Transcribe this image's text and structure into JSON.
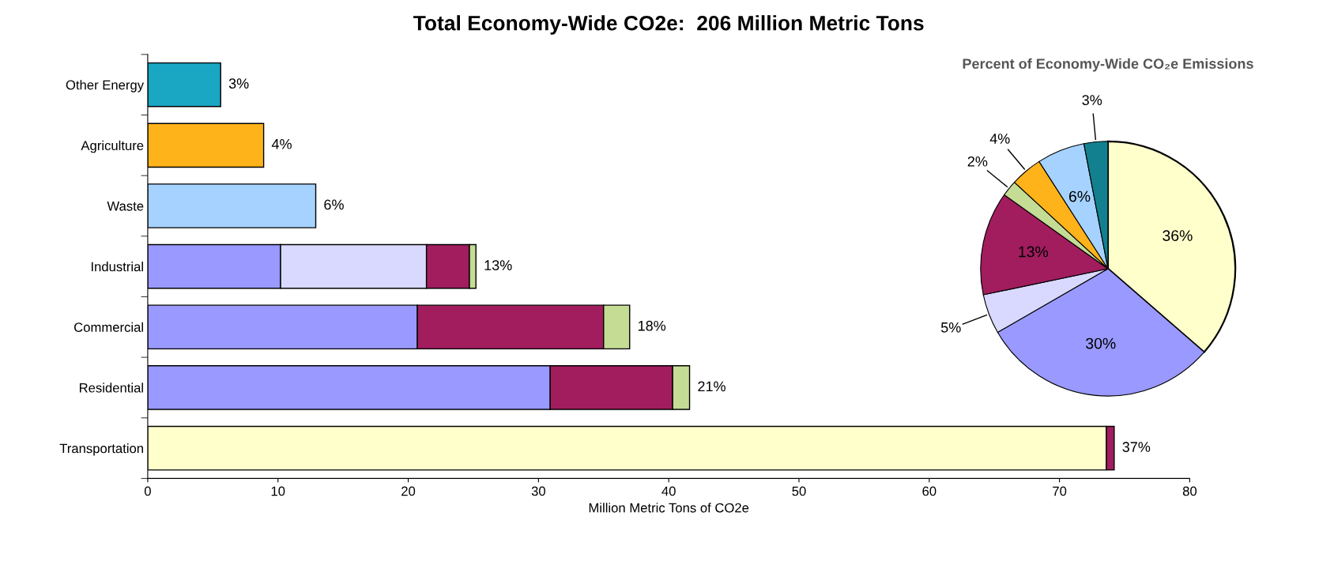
{
  "chart_data": [
    {
      "type": "bar",
      "title": "Total Economy-Wide CO2e:  206 Million Metric Tons",
      "xlabel": "Million Metric Tons of CO2e",
      "orientation": "horizontal",
      "stacked": true,
      "categories": [
        "Other Energy",
        "Agriculture",
        "Waste",
        "Industrial",
        "Commercial",
        "Residential",
        "Transportation"
      ],
      "series": [
        {
          "color": "#ffffcc",
          "values": [
            null,
            null,
            null,
            null,
            null,
            null,
            73.6
          ]
        },
        {
          "color": "#9999ff",
          "values": [
            null,
            null,
            null,
            10.2,
            20.7,
            30.9,
            null
          ]
        },
        {
          "color": "#d9d9ff",
          "values": [
            null,
            null,
            null,
            11.2,
            null,
            null,
            null
          ]
        },
        {
          "color": "#a11d5e",
          "values": [
            null,
            null,
            null,
            3.3,
            14.3,
            9.4,
            0.6
          ]
        },
        {
          "color": "#c4dc94",
          "values": [
            null,
            null,
            null,
            0.5,
            2.0,
            1.3,
            null
          ]
        },
        {
          "color": "#a6d2ff",
          "values": [
            null,
            null,
            12.9,
            null,
            null,
            null,
            null
          ]
        },
        {
          "color": "#ffb31a",
          "values": [
            null,
            8.9,
            null,
            null,
            null,
            null,
            null
          ]
        },
        {
          "color": "#1aa7c4",
          "values": [
            5.6,
            null,
            null,
            null,
            null,
            null,
            null
          ]
        }
      ],
      "annotations": [
        {
          "text": "3%",
          "x": 5.6,
          "y": "Other Energy"
        },
        {
          "text": "4%",
          "x": 8.9,
          "y": "Agriculture"
        },
        {
          "text": "6%",
          "x": 12.9,
          "y": "Waste"
        },
        {
          "text": "13%",
          "x": 25.2,
          "y": "Industrial"
        },
        {
          "text": "18%",
          "x": 37.0,
          "y": "Commercial"
        },
        {
          "text": "21%",
          "x": 41.6,
          "y": "Residential"
        },
        {
          "text": "37%",
          "x": 74.2,
          "y": "Transportation"
        }
      ],
      "xlim": [
        0,
        80
      ],
      "xticks": [
        0,
        10,
        20,
        30,
        40,
        50,
        60,
        70,
        80
      ],
      "grid": false
    },
    {
      "type": "pie",
      "title": "Percent of Economy-Wide CO₂e Emissions",
      "categories": [
        null,
        null,
        null,
        null,
        null,
        null,
        null,
        null
      ],
      "values": [
        36,
        30,
        5,
        13,
        2,
        4,
        6,
        3
      ],
      "colors": [
        "#ffffcc",
        "#9999ff",
        "#d9d9ff",
        "#a11d5e",
        "#c4dc94",
        "#ffb31a",
        "#a6d2ff",
        "#12808f"
      ],
      "value_labels": [
        "36%",
        "30%",
        "5%",
        "13%",
        "2%",
        "4%",
        "6%",
        "3%"
      ]
    }
  ]
}
